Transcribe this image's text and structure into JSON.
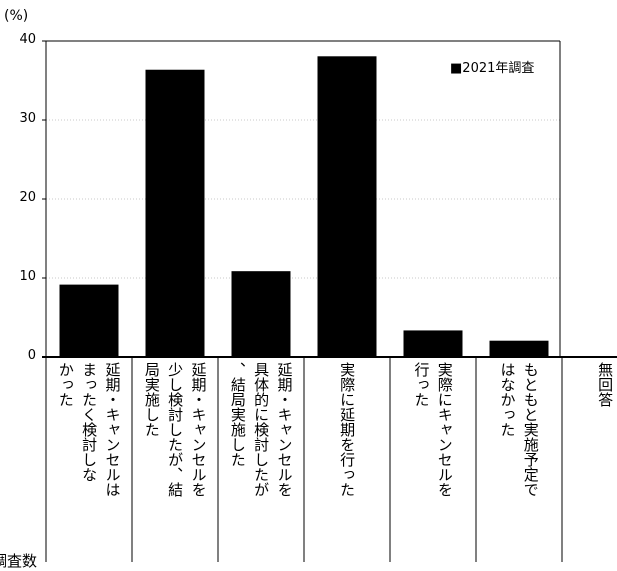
{
  "chart_data": {
    "type": "bar",
    "y_unit": "(%)",
    "ylim": [
      0,
      40
    ],
    "yticks": [
      "0",
      "10",
      "20",
      "30",
      "40"
    ],
    "grid": true,
    "legend_position": "top-right",
    "legend_marker": "■",
    "series": [
      {
        "name": "2021年調査",
        "color": "#000000",
        "values": [
          9.1,
          36.3,
          10.8,
          38.0,
          3.3,
          2.0,
          0
        ]
      }
    ],
    "categories": [
      {
        "lines": [
          "延期・キャンセルは",
          "まったく検討しな",
          "かった"
        ]
      },
      {
        "lines": [
          "延期・キャンセルを",
          "少し検討したが、結",
          "局実施した"
        ]
      },
      {
        "lines": [
          "延期・キャンセルを",
          "具体的に検討したが",
          "、結局実施した"
        ]
      },
      {
        "lines": [
          "実際に延期を行った"
        ]
      },
      {
        "lines": [
          "実際にキャンセルを",
          "行った"
        ]
      },
      {
        "lines": [
          "もともと実施予定で",
          "はなかった"
        ]
      },
      {
        "lines": [
          "無回答"
        ]
      }
    ],
    "footer_label": "調査数"
  }
}
